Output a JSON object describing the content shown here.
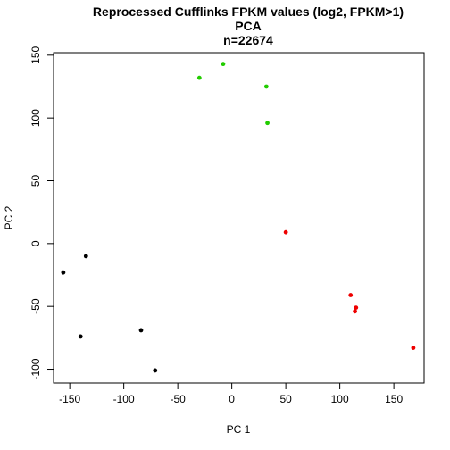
{
  "chart_data": {
    "type": "scatter",
    "title_lines": [
      "Reprocessed Cufflinks FPKM values (log2, FPKM>1)",
      "PCA",
      "n=22674"
    ],
    "xlabel": "PC 1",
    "ylabel": "PC 2",
    "xlim": [
      -165,
      178
    ],
    "ylim": [
      -111,
      152
    ],
    "xticks": [
      -150,
      -100,
      -50,
      0,
      50,
      100,
      150
    ],
    "yticks": [
      -100,
      -50,
      0,
      50,
      100,
      150
    ],
    "series": [
      {
        "color": "#000000",
        "points": [
          {
            "x": -156,
            "y": -23
          },
          {
            "x": -135,
            "y": -10
          },
          {
            "x": -140,
            "y": -74
          },
          {
            "x": -84,
            "y": -69
          },
          {
            "x": -71,
            "y": -101
          }
        ]
      },
      {
        "color": "#22cc00",
        "points": [
          {
            "x": -30,
            "y": 132
          },
          {
            "x": -8,
            "y": 143
          },
          {
            "x": 32,
            "y": 125
          },
          {
            "x": 33,
            "y": 96
          }
        ]
      },
      {
        "color": "#ee0000",
        "points": [
          {
            "x": 50,
            "y": 9
          },
          {
            "x": 110,
            "y": -41
          },
          {
            "x": 115,
            "y": -51
          },
          {
            "x": 114,
            "y": -54
          },
          {
            "x": 168,
            "y": -83
          }
        ]
      }
    ]
  }
}
